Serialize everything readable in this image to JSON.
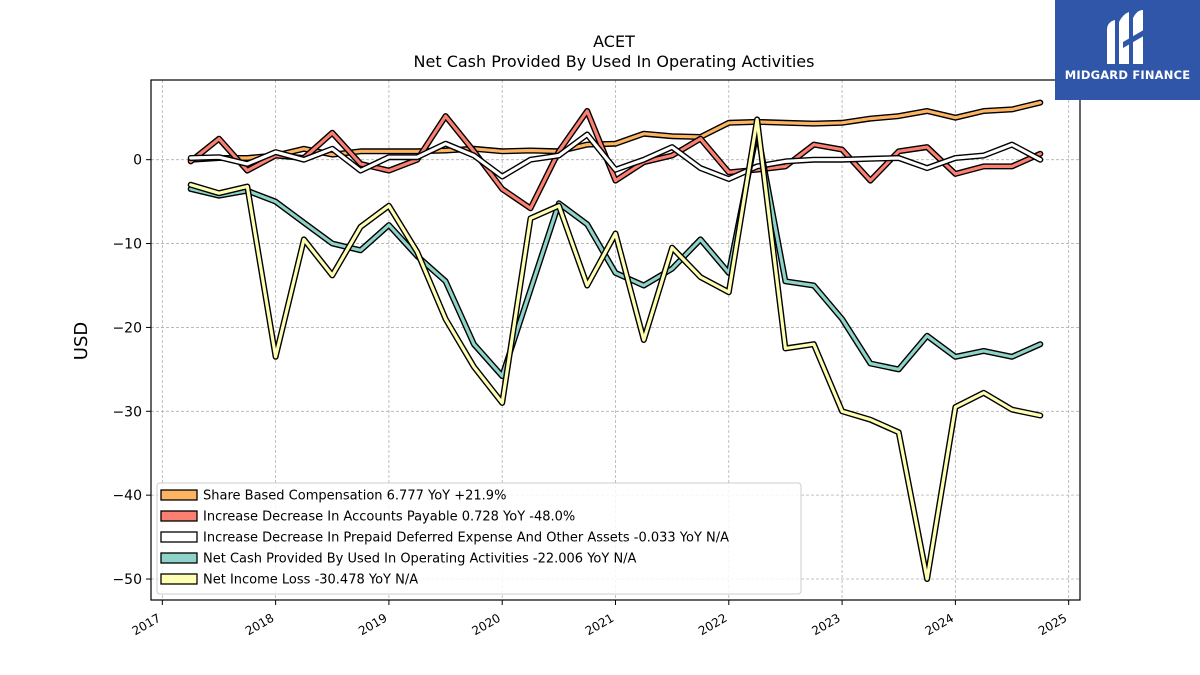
{
  "brand": {
    "name": "MIDGARD FINANCE",
    "bg_color": "#2f56a8"
  },
  "chart_data": {
    "type": "line",
    "title": "ACET",
    "subtitle": "Net Cash Provided By Used In Operating Activities",
    "xlabel": "",
    "ylabel": "USD",
    "xlim": [
      2016.9,
      2025.1
    ],
    "ylim": [
      -52.5,
      9.5
    ],
    "x_ticks": [
      "2017",
      "2018",
      "2019",
      "2020",
      "2021",
      "2022",
      "2023",
      "2024",
      "2025"
    ],
    "y_ticks": [
      0,
      -10,
      -20,
      -30,
      -40,
      -50
    ],
    "y_tick_labels": [
      "0",
      "−10",
      "−20",
      "−30",
      "−40",
      "−50"
    ],
    "grid": true,
    "legend_position": "lower-left",
    "x": [
      2017.25,
      2017.5,
      2017.75,
      2018.0,
      2018.25,
      2018.5,
      2018.75,
      2019.0,
      2019.25,
      2019.5,
      2019.75,
      2020.0,
      2020.25,
      2020.5,
      2020.75,
      2021.0,
      2021.25,
      2021.5,
      2021.75,
      2022.0,
      2022.25,
      2022.5,
      2022.75,
      2023.0,
      2023.25,
      2023.5,
      2023.75,
      2024.0,
      2024.25,
      2024.5,
      2024.75
    ],
    "series": [
      {
        "name": "Share Based Compensation",
        "legend": "Share Based Compensation  6.777 YoY +21.9%",
        "color": "#fdb462",
        "values": [
          0.0,
          0.2,
          0.2,
          0.5,
          1.3,
          0.6,
          1.0,
          1.0,
          1.0,
          1.1,
          1.3,
          1.0,
          1.1,
          1.0,
          1.8,
          1.9,
          3.1,
          2.8,
          2.7,
          4.4,
          4.5,
          4.4,
          4.3,
          4.4,
          4.9,
          5.2,
          5.8,
          5.0,
          5.8,
          6.0,
          6.8
        ]
      },
      {
        "name": "Increase Decrease In Accounts Payable",
        "legend": "Increase Decrease In Accounts Payable  0.728 YoY -48.0%",
        "color": "#fb8072",
        "values": [
          -0.2,
          2.5,
          -1.3,
          0.5,
          0.2,
          3.2,
          -0.5,
          -1.3,
          0.0,
          5.2,
          1.0,
          -3.5,
          -5.8,
          1.0,
          5.8,
          -2.5,
          -0.3,
          0.5,
          2.5,
          -1.5,
          -1.2,
          -0.8,
          1.8,
          1.2,
          -2.5,
          1.0,
          1.5,
          -1.7,
          -0.8,
          -0.8,
          0.7
        ]
      },
      {
        "name": "Increase Decrease In Prepaid Deferred Expense And Other Assets",
        "legend": "Increase Decrease In Prepaid Deferred Expense And Other Assets  -0.033 YoY N/A",
        "color": "#ffffff",
        "values": [
          0.2,
          0.3,
          -0.5,
          0.9,
          0.0,
          1.3,
          -1.3,
          0.3,
          0.3,
          1.9,
          0.5,
          -2.0,
          0.0,
          0.5,
          3.0,
          -1.2,
          0.0,
          1.5,
          -1.0,
          -2.3,
          -0.8,
          -0.2,
          0.0,
          0.0,
          0.1,
          0.2,
          -1.0,
          0.2,
          0.5,
          1.8,
          0.0
        ]
      },
      {
        "name": "Net Cash Provided By Used In Operating Activities",
        "legend": "Net Cash Provided By Used In Operating Activities  -22.006 YoY N/A",
        "color": "#8dd3c7",
        "values": [
          -3.5,
          -4.3,
          -3.7,
          -5.0,
          -7.5,
          -10.0,
          -10.8,
          -7.8,
          -11.5,
          -14.5,
          -22.0,
          -25.8,
          -15.5,
          -5.2,
          -7.7,
          -13.5,
          -15.0,
          -13.0,
          -9.5,
          -13.5,
          3.5,
          -14.5,
          -15.0,
          -19.0,
          -24.3,
          -25.0,
          -21.0,
          -23.5,
          -22.8,
          -23.5,
          -22.0
        ]
      },
      {
        "name": "Net Income Loss",
        "legend": "Net Income Loss  -30.478 YoY N/A",
        "color": "#ffffb3",
        "values": [
          -3.0,
          -4.0,
          -3.2,
          -23.5,
          -9.5,
          -13.8,
          -8.0,
          -5.5,
          -11.0,
          -19.0,
          -24.7,
          -29.0,
          -7.0,
          -5.5,
          -15.0,
          -8.8,
          -21.5,
          -10.5,
          -14.0,
          -15.8,
          4.8,
          -22.5,
          -22.0,
          -30.0,
          -31.0,
          -32.5,
          -50.0,
          -29.5,
          -27.8,
          -29.8,
          -30.5
        ]
      }
    ]
  }
}
